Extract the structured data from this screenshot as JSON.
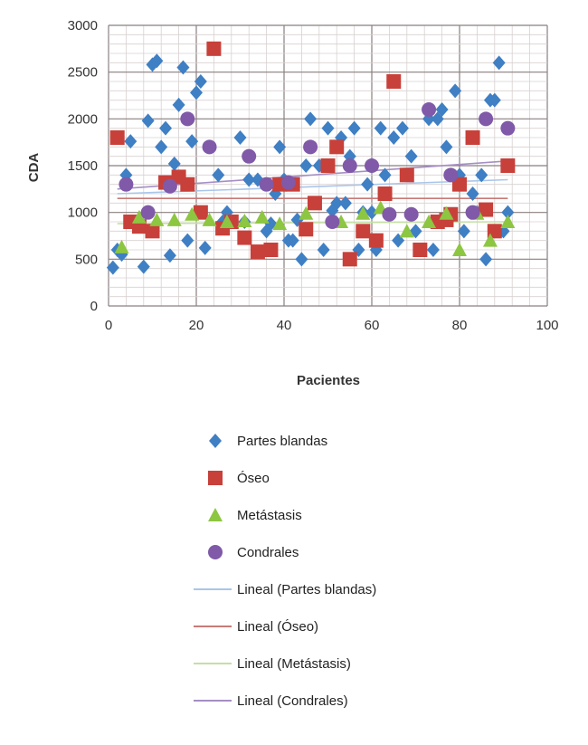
{
  "chart_data": {
    "type": "scatter",
    "title": "",
    "xlabel": "Pacientes",
    "ylabel": "CDA",
    "xlim": [
      0,
      100
    ],
    "ylim": [
      0,
      3000
    ],
    "xticks": [
      "0",
      "20",
      "40",
      "60",
      "80",
      "100"
    ],
    "yticks": [
      "0",
      "500",
      "1000",
      "1500",
      "2000",
      "2500",
      "3000"
    ],
    "grid": true,
    "legend_position": "bottom",
    "series": [
      {
        "name": "Partes blandas",
        "marker": "diamond",
        "color": "#3f7fc4",
        "points": [
          [
            1,
            410
          ],
          [
            2,
            600
          ],
          [
            3,
            550
          ],
          [
            4,
            1400
          ],
          [
            5,
            1760
          ],
          [
            8,
            420
          ],
          [
            9,
            1980
          ],
          [
            10,
            2580
          ],
          [
            11,
            2620
          ],
          [
            12,
            1700
          ],
          [
            13,
            1900
          ],
          [
            14,
            540
          ],
          [
            15,
            1520
          ],
          [
            16,
            2150
          ],
          [
            17,
            2550
          ],
          [
            18,
            700
          ],
          [
            19,
            1760
          ],
          [
            20,
            2280
          ],
          [
            21,
            2400
          ],
          [
            22,
            620
          ],
          [
            25,
            1400
          ],
          [
            26,
            900
          ],
          [
            27,
            1000
          ],
          [
            30,
            1800
          ],
          [
            31,
            900
          ],
          [
            32,
            1350
          ],
          [
            34,
            1350
          ],
          [
            36,
            800
          ],
          [
            37,
            880
          ],
          [
            38,
            1200
          ],
          [
            39,
            1700
          ],
          [
            40,
            1350
          ],
          [
            41,
            700
          ],
          [
            42,
            700
          ],
          [
            43,
            920
          ],
          [
            44,
            500
          ],
          [
            45,
            1500
          ],
          [
            46,
            2000
          ],
          [
            48,
            1500
          ],
          [
            49,
            600
          ],
          [
            50,
            1900
          ],
          [
            51,
            1020
          ],
          [
            52,
            1100
          ],
          [
            53,
            1800
          ],
          [
            54,
            1100
          ],
          [
            55,
            1600
          ],
          [
            56,
            1900
          ],
          [
            57,
            600
          ],
          [
            58,
            1000
          ],
          [
            59,
            1300
          ],
          [
            60,
            1000
          ],
          [
            61,
            600
          ],
          [
            62,
            1900
          ],
          [
            63,
            1400
          ],
          [
            65,
            1800
          ],
          [
            66,
            700
          ],
          [
            67,
            1900
          ],
          [
            69,
            1600
          ],
          [
            70,
            800
          ],
          [
            73,
            2000
          ],
          [
            74,
            600
          ],
          [
            75,
            2000
          ],
          [
            76,
            2100
          ],
          [
            77,
            1700
          ],
          [
            79,
            2300
          ],
          [
            80,
            1400
          ],
          [
            81,
            800
          ],
          [
            83,
            1200
          ],
          [
            84,
            1000
          ],
          [
            85,
            1400
          ],
          [
            86,
            500
          ],
          [
            87,
            2200
          ],
          [
            88,
            2200
          ],
          [
            89,
            2600
          ],
          [
            90,
            800
          ],
          [
            91,
            1000
          ]
        ]
      },
      {
        "name": "Óseo",
        "marker": "square",
        "color": "#c8403a",
        "points": [
          [
            2,
            1800
          ],
          [
            5,
            900
          ],
          [
            7,
            850
          ],
          [
            10,
            800
          ],
          [
            13,
            1320
          ],
          [
            16,
            1380
          ],
          [
            18,
            1300
          ],
          [
            21,
            1000
          ],
          [
            24,
            2750
          ],
          [
            26,
            830
          ],
          [
            28,
            900
          ],
          [
            31,
            730
          ],
          [
            34,
            580
          ],
          [
            37,
            600
          ],
          [
            39,
            1300
          ],
          [
            42,
            1300
          ],
          [
            45,
            820
          ],
          [
            47,
            1100
          ],
          [
            50,
            1500
          ],
          [
            52,
            1700
          ],
          [
            55,
            500
          ],
          [
            58,
            800
          ],
          [
            61,
            700
          ],
          [
            63,
            1200
          ],
          [
            65,
            2400
          ],
          [
            68,
            1400
          ],
          [
            71,
            600
          ],
          [
            75,
            900
          ],
          [
            77,
            920
          ],
          [
            78,
            980
          ],
          [
            80,
            1300
          ],
          [
            83,
            1800
          ],
          [
            86,
            1030
          ],
          [
            88,
            800
          ],
          [
            91,
            1500
          ]
        ]
      },
      {
        "name": "Metástasis",
        "marker": "triangle",
        "color": "#8dc641",
        "points": [
          [
            3,
            630
          ],
          [
            7,
            950
          ],
          [
            11,
            920
          ],
          [
            15,
            920
          ],
          [
            19,
            980
          ],
          [
            23,
            920
          ],
          [
            27,
            900
          ],
          [
            31,
            910
          ],
          [
            35,
            950
          ],
          [
            39,
            880
          ],
          [
            45,
            990
          ],
          [
            53,
            900
          ],
          [
            58,
            990
          ],
          [
            62,
            1050
          ],
          [
            68,
            800
          ],
          [
            73,
            900
          ],
          [
            77,
            990
          ],
          [
            80,
            600
          ],
          [
            84,
            990
          ],
          [
            87,
            700
          ],
          [
            91,
            900
          ]
        ]
      },
      {
        "name": "Condrales",
        "marker": "circle",
        "color": "#8059a8",
        "points": [
          [
            4,
            1300
          ],
          [
            9,
            1000
          ],
          [
            14,
            1280
          ],
          [
            18,
            2000
          ],
          [
            23,
            1700
          ],
          [
            32,
            1600
          ],
          [
            36,
            1300
          ],
          [
            41,
            1320
          ],
          [
            46,
            1700
          ],
          [
            51,
            900
          ],
          [
            55,
            1500
          ],
          [
            60,
            1500
          ],
          [
            64,
            980
          ],
          [
            69,
            980
          ],
          [
            73,
            2100
          ],
          [
            78,
            1400
          ],
          [
            83,
            1000
          ],
          [
            86,
            2000
          ],
          [
            91,
            1900
          ]
        ]
      }
    ],
    "trendlines": [
      {
        "name": "Lineal (Partes blandas)",
        "color": "#a9c6ea",
        "from": [
          2,
          1200
        ],
        "to": [
          91,
          1350
        ]
      },
      {
        "name": "Lineal (Óseo)",
        "color": "#c77b76",
        "from": [
          2,
          1150
        ],
        "to": [
          91,
          1150
        ]
      },
      {
        "name": "Lineal (Metástasis)",
        "color": "#c5dfa5",
        "from": [
          2,
          880
        ],
        "to": [
          91,
          900
        ]
      },
      {
        "name": "Lineal (Condrales)",
        "color": "#a58fc4",
        "from": [
          2,
          1250
        ],
        "to": [
          91,
          1550
        ]
      }
    ]
  }
}
